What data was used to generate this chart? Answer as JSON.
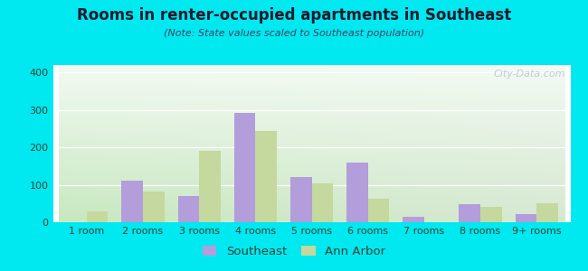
{
  "title": "Rooms in renter-occupied apartments in Southeast",
  "subtitle": "(Note: State values scaled to Southeast population)",
  "categories": [
    "1 room",
    "2 rooms",
    "3 rooms",
    "4 rooms",
    "5 rooms",
    "6 rooms",
    "7 rooms",
    "8 rooms",
    "9+ rooms"
  ],
  "southeast_values": [
    0,
    110,
    70,
    293,
    120,
    160,
    15,
    48,
    22
  ],
  "ann_arbor_values": [
    28,
    82,
    190,
    243,
    105,
    62,
    0,
    42,
    50
  ],
  "southeast_color": "#b39ddb",
  "ann_arbor_color": "#c5d89d",
  "ylim": [
    0,
    420
  ],
  "yticks": [
    0,
    100,
    200,
    300,
    400
  ],
  "bar_width": 0.38,
  "background_outer": "#00e8f0",
  "bg_top_left": "#f0f8f0",
  "bg_top_right": "#e8f0f8",
  "bg_bottom_left": "#c8e8c8",
  "bg_bottom_right": "#d0e8d8",
  "watermark": "City-Data.com",
  "legend_southeast": "Southeast",
  "legend_ann_arbor": "Ann Arbor",
  "title_color": "#1a1a2e",
  "subtitle_color": "#444466",
  "tick_color": "#334433"
}
